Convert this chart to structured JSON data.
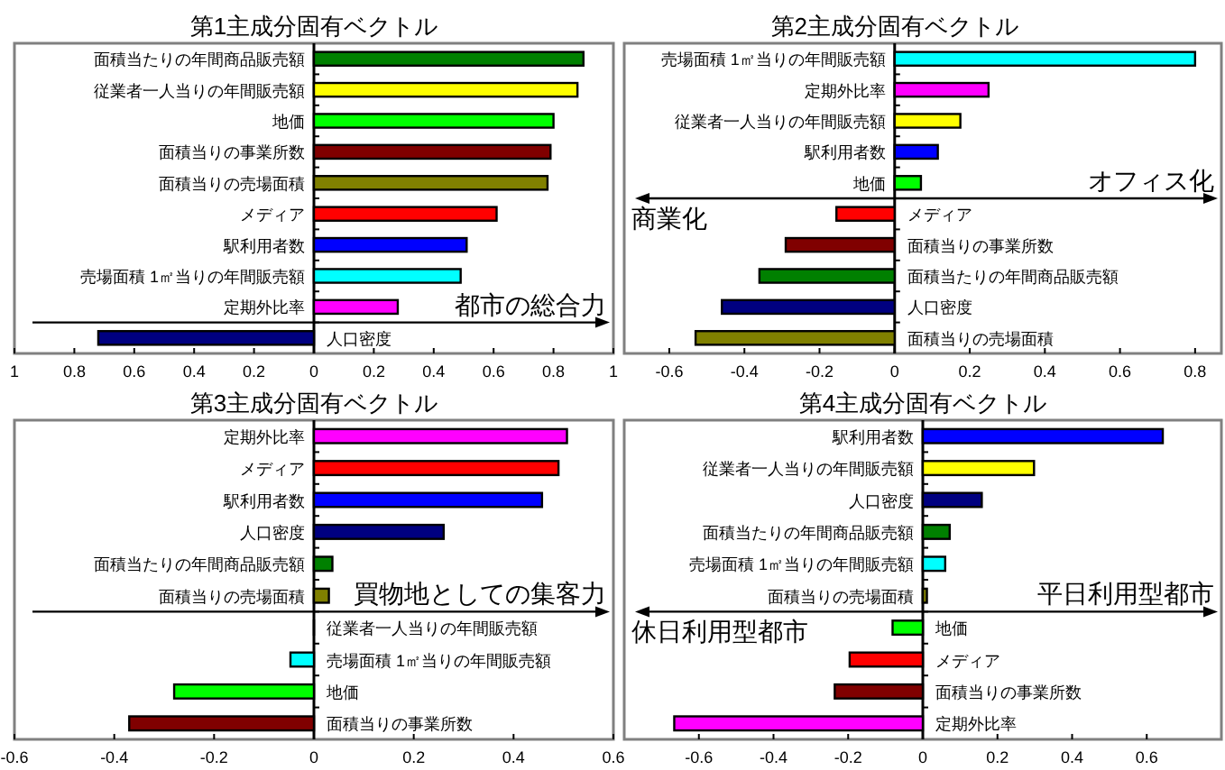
{
  "chart_data": [
    {
      "type": "bar",
      "orientation": "horizontal",
      "title": "第1主成分固有ベクトル",
      "categories": [
        "面積当たりの年間商品販売額",
        "従業者一人当りの年間販売額",
        "地価",
        "面積当りの事業所数",
        "面積当りの売場面積",
        "メディア",
        "駅利用者数",
        "売場面積 1㎡当りの年間販売額",
        "定期外比率",
        "人口密度"
      ],
      "values": [
        0.9,
        0.88,
        0.8,
        0.79,
        0.78,
        0.61,
        0.51,
        0.49,
        0.28,
        -0.72
      ],
      "colors": [
        "#008000",
        "#ffff00",
        "#00ff00",
        "#800000",
        "#808000",
        "#ff0000",
        "#0000ff",
        "#00ffff",
        "#ff00ff",
        "#000080"
      ],
      "xlim": [
        -1,
        1
      ],
      "xticks": [
        {
          "value": -1,
          "label": "1"
        },
        {
          "value": -0.8,
          "label": "0.8"
        },
        {
          "value": -0.6,
          "label": "0.6"
        },
        {
          "value": -0.4,
          "label": "0.4"
        },
        {
          "value": -0.2,
          "label": "0.2"
        },
        0,
        0.2,
        0.4,
        0.6,
        0.8,
        1
      ],
      "annotations": [
        "都市の総合力"
      ]
    },
    {
      "type": "bar",
      "orientation": "horizontal",
      "title": "第2主成分固有ベクトル",
      "categories": [
        "売場面積 1㎡当りの年間販売額",
        "定期外比率",
        "従業者一人当りの年間販売額",
        "駅利用者数",
        "地価",
        "メディア",
        "面積当りの事業所数",
        "面積当たりの年間商品販売額",
        "人口密度",
        "面積当りの売場面積"
      ],
      "values": [
        0.8,
        0.25,
        0.175,
        0.115,
        0.07,
        -0.155,
        -0.29,
        -0.36,
        -0.46,
        -0.53
      ],
      "colors": [
        "#00ffff",
        "#ff00ff",
        "#ffff00",
        "#0000ff",
        "#00ff00",
        "#ff0000",
        "#800000",
        "#008000",
        "#000080",
        "#808000"
      ],
      "xlim": [
        -0.72,
        0.87
      ],
      "xticks": [
        -0.6,
        -0.4,
        -0.2,
        0,
        0.2,
        0.4,
        0.6,
        0.8
      ],
      "annotations": [
        "オフィス化",
        "商業化"
      ]
    },
    {
      "type": "bar",
      "orientation": "horizontal",
      "title": "第3主成分固有ベクトル",
      "categories": [
        "定期外比率",
        "メディア",
        "駅利用者数",
        "人口密度",
        "面積当たりの年間商品販売額",
        "面積当りの売場面積",
        "従業者一人当りの年間販売額",
        "売場面積 1㎡当りの年間販売額",
        "地価",
        "面積当りの事業所数"
      ],
      "values": [
        0.507,
        0.49,
        0.457,
        0.26,
        0.037,
        0.03,
        0,
        -0.047,
        -0.28,
        -0.37
      ],
      "colors": [
        "#ff00ff",
        "#ff0000",
        "#0000ff",
        "#000080",
        "#008000",
        "#808000",
        "#ffff00",
        "#00ffff",
        "#00ff00",
        "#800000"
      ],
      "xlim": [
        -0.6,
        0.6
      ],
      "xticks": [
        -0.6,
        -0.4,
        -0.2,
        0,
        0.2,
        0.4,
        0.6
      ],
      "annotations": [
        "買物地としての集客力"
      ]
    },
    {
      "type": "bar",
      "orientation": "horizontal",
      "title": "第4主成分固有ベクトル",
      "categories": [
        "駅利用者数",
        "従業者一人当りの年間販売額",
        "人口密度",
        "面積当たりの年間商品販売額",
        "売場面積 1㎡当りの年間販売額",
        "面積当りの売場面積",
        "地価",
        "メディア",
        "面積当りの事業所数",
        "定期外比率"
      ],
      "values": [
        0.643,
        0.298,
        0.158,
        0.072,
        0.06,
        0.011,
        -0.081,
        -0.196,
        -0.236,
        -0.666
      ],
      "colors": [
        "#0000ff",
        "#ffff00",
        "#000080",
        "#008000",
        "#00ffff",
        "#808000",
        "#00ff00",
        "#ff0000",
        "#800000",
        "#ff00ff"
      ],
      "xlim": [
        -0.8,
        0.8
      ],
      "xticks": [
        -0.6,
        -0.4,
        -0.2,
        0,
        0.2,
        0.4,
        0.6
      ],
      "annotations": [
        "平日利用型都市",
        "休日利用型都市"
      ]
    }
  ]
}
